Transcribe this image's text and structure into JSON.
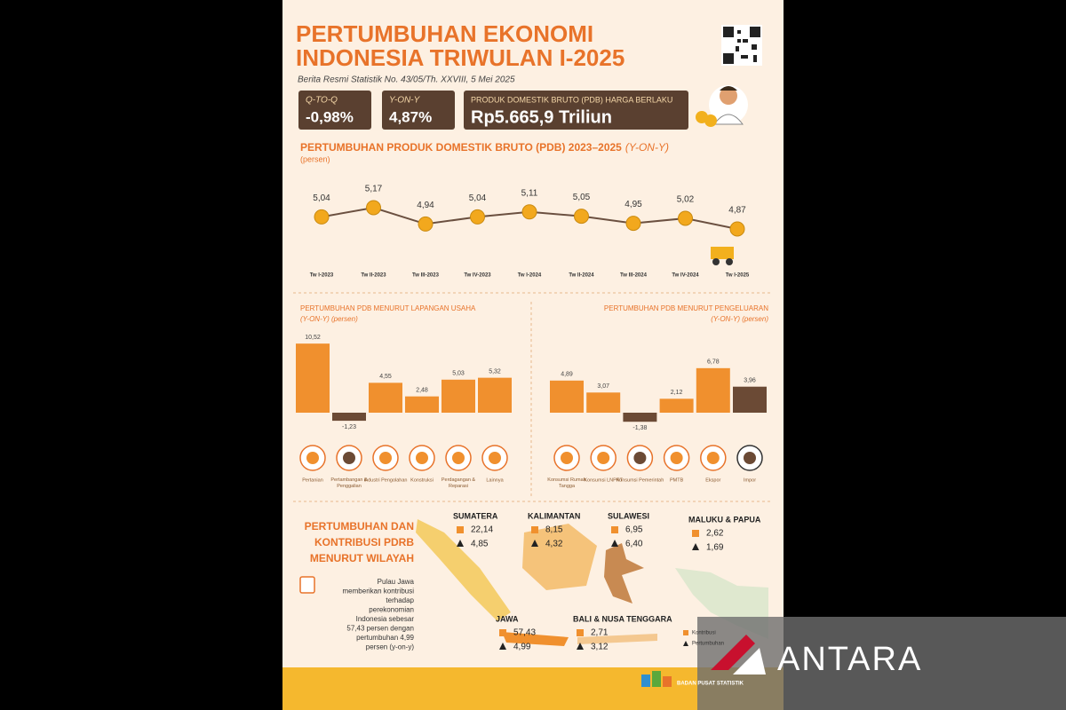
{
  "header": {
    "title": [
      "PERTUMBUHAN EKONOMI",
      "INDONESIA TRIWULAN I-2025"
    ],
    "subtitle": "Berita Resmi Statistik No. 43/05/Th. XXVIII, 5 Mei 2025"
  },
  "kpis": [
    {
      "label": "Q-TO-Q",
      "value": "-0,98%"
    },
    {
      "label": "Y-ON-Y",
      "value": "4,87%"
    },
    {
      "label": "PRODUK DOMESTIK BRUTO (PDB) HARGA BERLAKU",
      "value": "Rp5.665,9 Triliun"
    }
  ],
  "gdp_trend": {
    "type": "line",
    "title": "PERTUMBUHAN PRODUK DOMESTIK BRUTO (PDB) 2023–2025",
    "title_note": "(Y-ON-Y)",
    "unit": "(persen)",
    "categories": [
      "Tw I-2023",
      "Tw II-2023",
      "Tw III-2023",
      "Tw IV-2023",
      "Tw I-2024",
      "Tw II-2024",
      "Tw III-2024",
      "Tw IV-2024",
      "Tw I-2025"
    ],
    "values": [
      5.04,
      5.17,
      4.94,
      5.04,
      5.11,
      5.05,
      4.95,
      5.02,
      4.87
    ],
    "value_labels": [
      "5,04",
      "5,17",
      "4,94",
      "5,04",
      "5,11",
      "5,05",
      "4,95",
      "5,02",
      "4,87"
    ],
    "color": "#f2a81d"
  },
  "sector_growth": {
    "type": "bar",
    "title": "PERTUMBUHAN PDB MENURUT LAPANGAN USAHA",
    "subtitle": "(Y-ON-Y) (persen)",
    "categories": [
      "Pertanian",
      "Pertambangan & Penggalian",
      "Industri Pengolahan",
      "Konstruksi",
      "Perdagangan & Reparasi",
      "Lainnya"
    ],
    "values": [
      10.52,
      -1.23,
      4.55,
      2.48,
      5.03,
      5.32
    ],
    "value_labels": [
      "10,52",
      "-1,23",
      "4,55",
      "2,48",
      "5,03",
      "5,32"
    ],
    "colors": [
      "#f0902e",
      "#6b4a35",
      "#f0902e",
      "#f0902e",
      "#f0902e",
      "#f0902e"
    ]
  },
  "expenditure_growth": {
    "type": "bar",
    "title": "PERTUMBUHAN PDB MENURUT PENGELUARAN",
    "subtitle": "(Y-ON-Y) (persen)",
    "categories": [
      "Konsumsi Rumah Tangga",
      "Konsumsi LNPRT",
      "Konsumsi Pemerintah",
      "PMTB",
      "Ekspor",
      "Impor"
    ],
    "values": [
      4.89,
      3.07,
      -1.38,
      2.12,
      6.78,
      3.96
    ],
    "value_labels": [
      "4,89",
      "3,07",
      "-1,38",
      "2,12",
      "6,78",
      "3,96"
    ],
    "colors": [
      "#f0902e",
      "#f0902e",
      "#6b4a35",
      "#f0902e",
      "#f0902e",
      "#6b4a35"
    ]
  },
  "regions": {
    "title": [
      "PERTUMBUHAN DAN",
      "KONTRIBUSI PDRB",
      "MENURUT WILAYAH"
    ],
    "note": [
      "Pulau Jawa",
      "memberikan kontribusi",
      "terhadap",
      "perekonomian",
      "Indonesia sebesar",
      "57,43 persen dengan",
      "pertumbuhan 4,99",
      "persen (y-on-y)"
    ],
    "items": [
      {
        "name": "SUMATERA",
        "contribution": "22,14",
        "growth": "4,85"
      },
      {
        "name": "KALIMANTAN",
        "contribution": "8,15",
        "growth": "4,32"
      },
      {
        "name": "SULAWESI",
        "contribution": "6,95",
        "growth": "6,40"
      },
      {
        "name": "MALUKU & PAPUA",
        "contribution": "2,62",
        "growth": "1,69"
      },
      {
        "name": "JAWA",
        "contribution": "57,43",
        "growth": "4,99"
      },
      {
        "name": "BALI & NUSA TENGGARA",
        "contribution": "2,71",
        "growth": "3,12"
      }
    ],
    "legend": [
      "Kontribusi",
      "Pertumbuhan"
    ]
  },
  "footer": {
    "agency": "BADAN PUSAT STATISTIK"
  },
  "watermark": "ANTARA"
}
